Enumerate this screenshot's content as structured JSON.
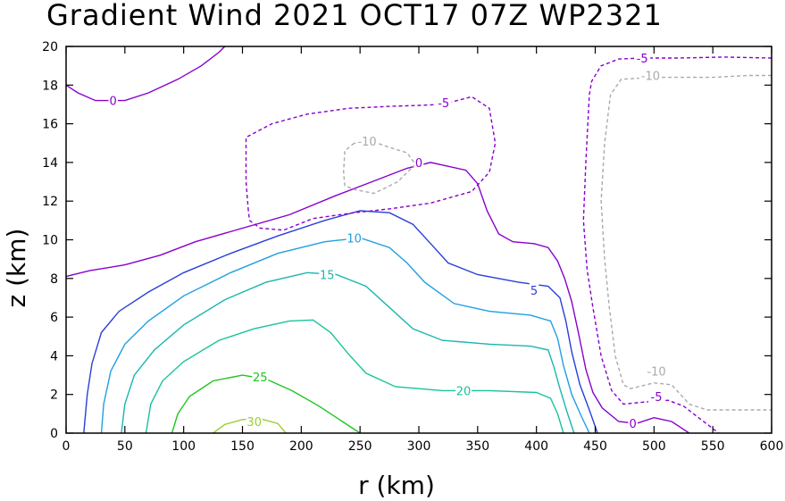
{
  "chart_data": {
    "type": "contour",
    "title": "Gradient Wind 2021 OCT17 07Z   WP2321",
    "xlabel": "r (km)",
    "ylabel": "z (km)",
    "xlim": [
      0,
      600
    ],
    "ylim": [
      0,
      20
    ],
    "xticks": [
      "0",
      "50",
      "100",
      "150",
      "200",
      "250",
      "300",
      "350",
      "400",
      "450",
      "500",
      "550",
      "600"
    ],
    "yticks": [
      "0",
      "2",
      "4",
      "6",
      "8",
      "10",
      "12",
      "14",
      "16",
      "18",
      "20"
    ],
    "grid": false,
    "contours": [
      {
        "level": "0",
        "color": "#8800cc",
        "dashed": false,
        "points": [
          [
            0,
            8.1
          ],
          [
            20,
            8.4
          ],
          [
            50,
            8.7
          ],
          [
            80,
            9.2
          ],
          [
            110,
            9.9
          ],
          [
            150,
            10.6
          ],
          [
            190,
            11.3
          ],
          [
            230,
            12.3
          ],
          [
            260,
            13.0
          ],
          [
            290,
            13.7
          ],
          [
            310,
            14.0
          ],
          [
            340,
            13.6
          ],
          [
            350,
            12.9
          ],
          [
            358,
            11.5
          ],
          [
            368,
            10.3
          ],
          [
            380,
            9.9
          ],
          [
            398,
            9.8
          ],
          [
            410,
            9.6
          ],
          [
            418,
            8.9
          ],
          [
            424,
            8.0
          ],
          [
            430,
            6.8
          ],
          [
            436,
            5.1
          ],
          [
            442,
            3.3
          ],
          [
            448,
            2.1
          ],
          [
            456,
            1.3
          ],
          [
            470,
            0.6
          ],
          [
            485,
            0.5
          ],
          [
            500,
            0.8
          ],
          [
            515,
            0.6
          ],
          [
            530,
            0.0
          ]
        ]
      },
      {
        "level": "0",
        "color": "#8800cc",
        "dashed": false,
        "points": [
          [
            0,
            18.0
          ],
          [
            10,
            17.6
          ],
          [
            25,
            17.2
          ],
          [
            50,
            17.2
          ],
          [
            70,
            17.6
          ],
          [
            95,
            18.3
          ],
          [
            115,
            19.0
          ],
          [
            130,
            19.7
          ],
          [
            135,
            20.0
          ]
        ]
      },
      {
        "level": "5",
        "color": "#2a3fd6",
        "dashed": false,
        "points": [
          [
            15,
            0.0
          ],
          [
            18,
            2.0
          ],
          [
            22,
            3.6
          ],
          [
            30,
            5.2
          ],
          [
            45,
            6.3
          ],
          [
            70,
            7.3
          ],
          [
            100,
            8.3
          ],
          [
            140,
            9.3
          ],
          [
            180,
            10.2
          ],
          [
            220,
            11.0
          ],
          [
            250,
            11.5
          ],
          [
            275,
            11.4
          ],
          [
            295,
            10.8
          ],
          [
            310,
            9.8
          ],
          [
            325,
            8.8
          ],
          [
            350,
            8.2
          ],
          [
            385,
            7.8
          ],
          [
            410,
            7.6
          ],
          [
            420,
            7.0
          ],
          [
            425,
            5.8
          ],
          [
            430,
            4.2
          ],
          [
            437,
            2.5
          ],
          [
            445,
            1.2
          ],
          [
            452,
            0.0
          ]
        ]
      },
      {
        "level": "10",
        "color": "#1f9fe0",
        "dashed": false,
        "points": [
          [
            30,
            0.0
          ],
          [
            32,
            1.5
          ],
          [
            38,
            3.2
          ],
          [
            50,
            4.6
          ],
          [
            70,
            5.8
          ],
          [
            100,
            7.1
          ],
          [
            140,
            8.3
          ],
          [
            180,
            9.3
          ],
          [
            220,
            9.9
          ],
          [
            250,
            10.1
          ],
          [
            275,
            9.6
          ],
          [
            290,
            8.8
          ],
          [
            305,
            7.8
          ],
          [
            330,
            6.7
          ],
          [
            360,
            6.3
          ],
          [
            395,
            6.1
          ],
          [
            412,
            5.8
          ],
          [
            418,
            4.9
          ],
          [
            423,
            3.5
          ],
          [
            430,
            2.0
          ],
          [
            438,
            0.9
          ],
          [
            445,
            0.0
          ]
        ]
      },
      {
        "level": "15",
        "color": "#1ab6b0",
        "dashed": false,
        "points": [
          [
            47,
            0.0
          ],
          [
            50,
            1.5
          ],
          [
            58,
            3.0
          ],
          [
            75,
            4.3
          ],
          [
            100,
            5.6
          ],
          [
            135,
            6.9
          ],
          [
            170,
            7.8
          ],
          [
            205,
            8.3
          ],
          [
            230,
            8.2
          ],
          [
            255,
            7.6
          ],
          [
            275,
            6.5
          ],
          [
            295,
            5.4
          ],
          [
            320,
            4.8
          ],
          [
            360,
            4.6
          ],
          [
            395,
            4.5
          ],
          [
            410,
            4.3
          ],
          [
            415,
            3.4
          ],
          [
            420,
            2.3
          ],
          [
            426,
            1.1
          ],
          [
            432,
            0.0
          ]
        ]
      },
      {
        "level": "20",
        "color": "#18c49a",
        "dashed": false,
        "points": [
          [
            68,
            0.0
          ],
          [
            72,
            1.5
          ],
          [
            82,
            2.7
          ],
          [
            100,
            3.7
          ],
          [
            130,
            4.8
          ],
          [
            160,
            5.4
          ],
          [
            190,
            5.8
          ],
          [
            210,
            5.85
          ],
          [
            225,
            5.2
          ],
          [
            240,
            4.1
          ],
          [
            255,
            3.1
          ],
          [
            280,
            2.4
          ],
          [
            320,
            2.2
          ],
          [
            360,
            2.2
          ],
          [
            400,
            2.1
          ],
          [
            412,
            1.8
          ],
          [
            418,
            1.0
          ],
          [
            423,
            0.0
          ]
        ]
      },
      {
        "level": "25",
        "color": "#1fc41f",
        "dashed": false,
        "points": [
          [
            90,
            0.0
          ],
          [
            95,
            1.0
          ],
          [
            105,
            1.9
          ],
          [
            125,
            2.7
          ],
          [
            150,
            3.0
          ],
          [
            170,
            2.8
          ],
          [
            192,
            2.2
          ],
          [
            215,
            1.4
          ],
          [
            235,
            0.6
          ],
          [
            250,
            0.0
          ]
        ]
      },
      {
        "level": "30",
        "color": "#9acd32",
        "dashed": false,
        "points": [
          [
            125,
            0.0
          ],
          [
            135,
            0.45
          ],
          [
            150,
            0.7
          ],
          [
            165,
            0.75
          ],
          [
            180,
            0.5
          ],
          [
            187,
            0.0
          ]
        ]
      },
      {
        "level": "-5",
        "color": "#8800cc",
        "dashed": true,
        "points": [
          [
            155,
            11.5
          ],
          [
            153,
            13.0
          ],
          [
            153,
            15.3
          ],
          [
            175,
            16.0
          ],
          [
            205,
            16.5
          ],
          [
            240,
            16.8
          ],
          [
            275,
            16.9
          ],
          [
            300,
            16.95
          ],
          [
            320,
            17.0
          ],
          [
            345,
            17.4
          ],
          [
            360,
            16.8
          ],
          [
            365,
            15.0
          ],
          [
            360,
            13.5
          ],
          [
            345,
            12.5
          ],
          [
            310,
            11.9
          ],
          [
            275,
            11.6
          ],
          [
            245,
            11.4
          ],
          [
            210,
            11.1
          ],
          [
            185,
            10.5
          ],
          [
            165,
            10.6
          ],
          [
            156,
            11.0
          ],
          [
            155,
            11.5
          ]
        ]
      },
      {
        "level": "-10",
        "color": "#aaaaaa",
        "dashed": true,
        "points": [
          [
            245,
            15.0
          ],
          [
            237,
            14.6
          ],
          [
            236,
            13.5
          ],
          [
            237,
            12.8
          ],
          [
            245,
            12.6
          ],
          [
            262,
            12.4
          ],
          [
            282,
            13.0
          ],
          [
            297,
            13.9
          ],
          [
            290,
            14.5
          ],
          [
            274,
            14.8
          ],
          [
            260,
            15.1
          ],
          [
            245,
            15.0
          ]
        ]
      },
      {
        "level": "-5",
        "color": "#8800cc",
        "dashed": true,
        "points": [
          [
            600,
            19.4
          ],
          [
            560,
            19.45
          ],
          [
            520,
            19.4
          ],
          [
            490,
            19.4
          ],
          [
            470,
            19.35
          ],
          [
            455,
            19.0
          ],
          [
            447,
            18.2
          ],
          [
            445,
            17.5
          ],
          [
            442,
            14.0
          ],
          [
            440,
            11.0
          ],
          [
            443,
            8.5
          ],
          [
            448,
            6.5
          ],
          [
            455,
            4.0
          ],
          [
            464,
            2.2
          ],
          [
            474,
            1.5
          ],
          [
            490,
            1.6
          ],
          [
            512,
            1.7
          ],
          [
            525,
            1.4
          ],
          [
            540,
            0.7
          ],
          [
            555,
            0.0
          ]
        ]
      },
      {
        "level": "-10",
        "color": "#aaaaaa",
        "dashed": true,
        "points": [
          [
            600,
            18.5
          ],
          [
            580,
            18.5
          ],
          [
            550,
            18.4
          ],
          [
            500,
            18.4
          ],
          [
            472,
            18.3
          ],
          [
            463,
            17.5
          ],
          [
            458,
            15.0
          ],
          [
            455,
            12.0
          ],
          [
            458,
            9.0
          ],
          [
            462,
            6.5
          ],
          [
            467,
            4.0
          ],
          [
            474,
            2.5
          ],
          [
            480,
            2.3
          ],
          [
            500,
            2.6
          ],
          [
            515,
            2.5
          ],
          [
            530,
            1.5
          ],
          [
            545,
            1.2
          ],
          [
            570,
            1.2
          ],
          [
            600,
            1.2
          ]
        ]
      }
    ],
    "labels": [
      {
        "text": "0",
        "x": 40,
        "y": 17.2,
        "color": "#8800cc"
      },
      {
        "text": "-5",
        "x": 321,
        "y": 17.1,
        "color": "#8800cc"
      },
      {
        "text": "-10",
        "x": 256,
        "y": 15.1,
        "color": "#aaaaaa"
      },
      {
        "text": "0",
        "x": 300,
        "y": 14.0,
        "color": "#8800cc"
      },
      {
        "text": "5",
        "x": 398,
        "y": 7.4,
        "color": "#2a3fd6"
      },
      {
        "text": "10",
        "x": 245,
        "y": 10.1,
        "color": "#1f9fe0"
      },
      {
        "text": "15",
        "x": 222,
        "y": 8.2,
        "color": "#1ab6b0"
      },
      {
        "text": "20",
        "x": 338,
        "y": 2.2,
        "color": "#18c49a"
      },
      {
        "text": "25",
        "x": 165,
        "y": 2.9,
        "color": "#1fc41f"
      },
      {
        "text": "30",
        "x": 160,
        "y": 0.6,
        "color": "#9acd32"
      },
      {
        "text": "-5",
        "x": 490,
        "y": 19.4,
        "color": "#8800cc"
      },
      {
        "text": "-10",
        "x": 497,
        "y": 18.5,
        "color": "#aaaaaa"
      },
      {
        "text": "-10",
        "x": 502,
        "y": 3.2,
        "color": "#aaaaaa"
      },
      {
        "text": "-5",
        "x": 502,
        "y": 1.9,
        "color": "#8800cc"
      },
      {
        "text": "0",
        "x": 482,
        "y": 0.5,
        "color": "#8800cc"
      }
    ]
  }
}
